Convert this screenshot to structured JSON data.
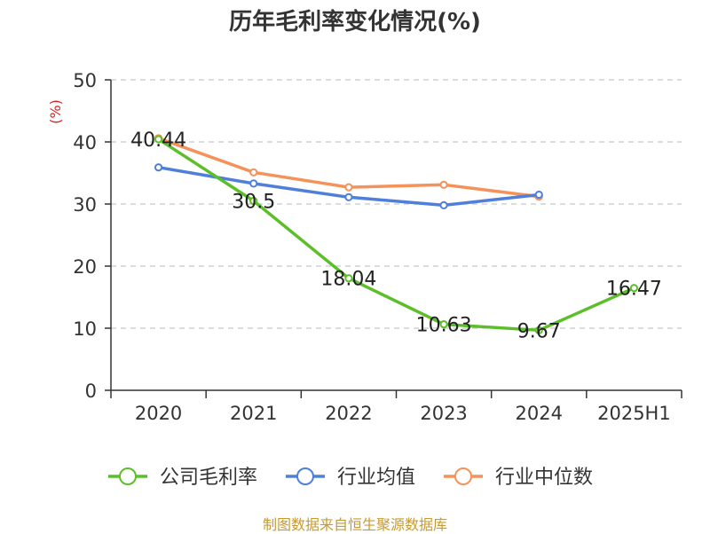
{
  "chart_data": {
    "type": "line",
    "title": "历年毛利率变化情况(%)",
    "ylabel": "(%)",
    "xlabel": "",
    "categories": [
      "2020",
      "2021",
      "2022",
      "2023",
      "2024",
      "2025H1"
    ],
    "ylim": [
      0,
      50
    ],
    "yticks": [
      "0",
      "10",
      "20",
      "30",
      "40",
      "50"
    ],
    "grid": "horizontal dashed",
    "legend_position": "bottom",
    "series": [
      {
        "name": "公司毛利率",
        "color": "#5cbf2a",
        "values": [
          40.44,
          30.5,
          18.04,
          10.63,
          9.67,
          16.47
        ],
        "labels": [
          "40.44",
          "30.5",
          "18.04",
          "10.63",
          "9.67",
          "16.47"
        ]
      },
      {
        "name": "行业均值",
        "color": "#4f7fd9",
        "values": [
          35.9,
          33.3,
          31.1,
          29.8,
          31.5,
          null
        ]
      },
      {
        "name": "行业中位数",
        "color": "#f5925a",
        "values": [
          40.6,
          35.1,
          32.7,
          33.1,
          31.2,
          null
        ]
      }
    ],
    "source": "制图数据来自恒生聚源数据库"
  }
}
